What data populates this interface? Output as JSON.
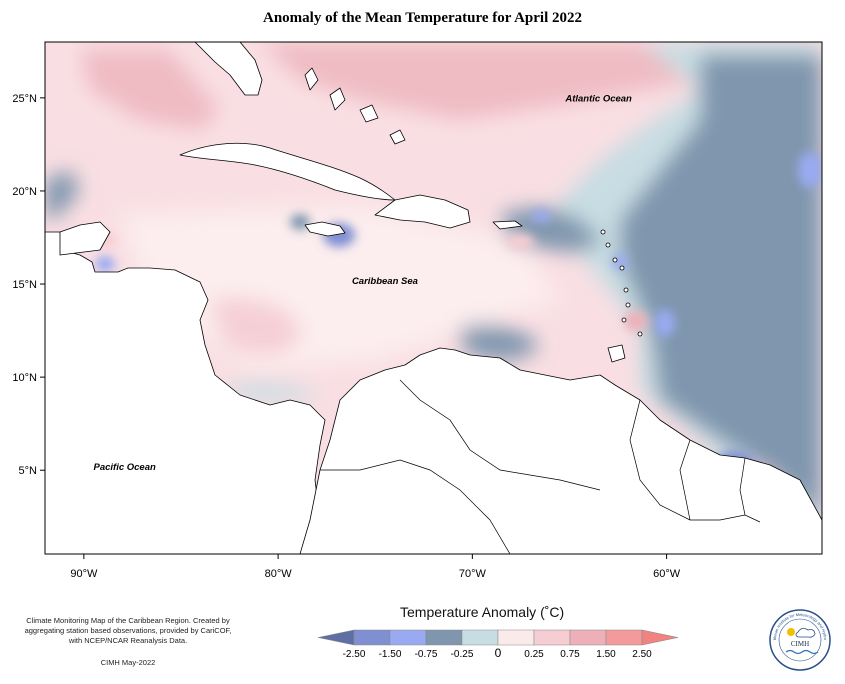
{
  "map": {
    "title": "Anomaly of the Mean Temperature for April 2022",
    "extent": {
      "lon_range": [
        -92,
        -52
      ],
      "lat_range": [
        0.5,
        28
      ]
    },
    "lon_ticks": [
      {
        "value": -90,
        "label": "90°W"
      },
      {
        "value": -80,
        "label": "80°W"
      },
      {
        "value": -70,
        "label": "70°W"
      },
      {
        "value": -60,
        "label": "60°W"
      }
    ],
    "lat_ticks": [
      {
        "value": 25,
        "label": "25°N"
      },
      {
        "value": 20,
        "label": "20°N"
      },
      {
        "value": 15,
        "label": "15°N"
      },
      {
        "value": 10,
        "label": "10°N"
      },
      {
        "value": 5,
        "label": "5°N"
      }
    ],
    "place_labels": [
      {
        "text": "Atlantic Ocean",
        "lon": -63.5,
        "lat": 24.8
      },
      {
        "text": "Caribbean Sea",
        "lon": -74.5,
        "lat": 15.0
      },
      {
        "text": "Pacific Ocean",
        "lon": -87.9,
        "lat": 5.0
      }
    ]
  },
  "legend": {
    "title": "Temperature Anomaly (˚C)",
    "bins": [
      {
        "color": "#5f6fa6"
      },
      {
        "color": "#7f8fd2"
      },
      {
        "color": "#9aaaf2"
      },
      {
        "color": "#7f96ae"
      },
      {
        "color": "#c8dde3"
      },
      {
        "color": "#fbeaea"
      },
      {
        "color": "#f6cdd3"
      },
      {
        "color": "#eeb0b8"
      },
      {
        "color": "#f39a9a"
      },
      {
        "color": "#f28282"
      }
    ],
    "tick_labels": [
      "-2.50",
      "-1.50",
      "-0.75",
      "-0.25",
      "0",
      "0.25",
      "0.75",
      "1.50",
      "2.50"
    ]
  },
  "credits": {
    "description": "Climate Monitoring Map of the Caribbean Region. Created by aggregating station based observations, provided by CariCOF, with NCEP/NCAR Reanalysis Data.",
    "date": "CIMH May-2022"
  },
  "logo": {
    "abbr": "CIMH",
    "name": "Caribbean Institute for Meteorology and Hydrology"
  }
}
